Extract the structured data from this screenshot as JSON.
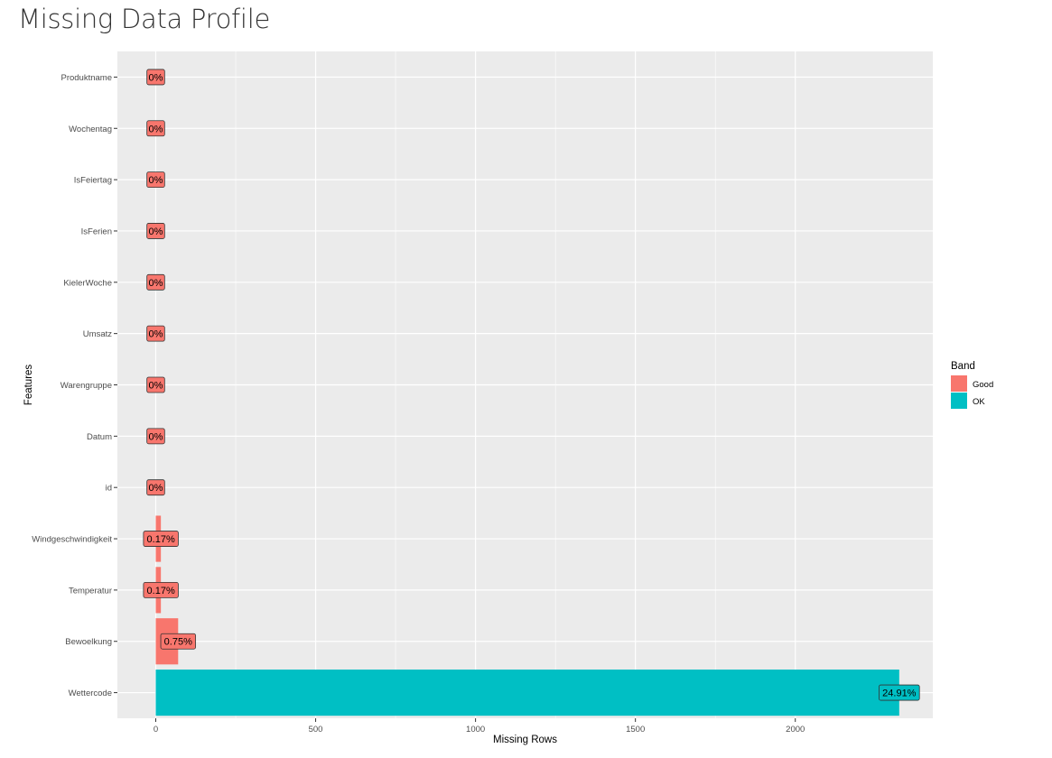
{
  "page": {
    "title": "Missing Data Profile"
  },
  "colors": {
    "Good": "#F8766D",
    "OK": "#00BFC4",
    "panel": "#EBEBEB",
    "grid": "#FFFFFF"
  },
  "chart_data": {
    "type": "bar",
    "orientation": "horizontal",
    "xlabel": "Missing Rows",
    "ylabel": "Features",
    "xlim": [
      -120,
      2430
    ],
    "xticks": [
      0,
      500,
      1000,
      1500,
      2000
    ],
    "grid": true,
    "legend": {
      "title": "Band",
      "position": "right",
      "entries": [
        {
          "name": "Good",
          "color": "#F8766D"
        },
        {
          "name": "OK",
          "color": "#00BFC4"
        }
      ]
    },
    "categories": [
      "Produktname",
      "Wochentag",
      "IsFeiertag",
      "IsFerien",
      "KielerWoche",
      "Umsatz",
      "Warengruppe",
      "Datum",
      "id",
      "Windgeschwindigkeit",
      "Temperatur",
      "Bewoelkung",
      "Wettercode"
    ],
    "values": [
      0,
      0,
      0,
      0,
      0,
      0,
      0,
      0,
      0,
      16,
      16,
      70,
      2325
    ],
    "bands": [
      "Good",
      "Good",
      "Good",
      "Good",
      "Good",
      "Good",
      "Good",
      "Good",
      "Good",
      "Good",
      "Good",
      "Good",
      "OK"
    ],
    "labels": [
      "0%",
      "0%",
      "0%",
      "0%",
      "0%",
      "0%",
      "0%",
      "0%",
      "0%",
      "0.17%",
      "0.17%",
      "0.75%",
      "24.91%"
    ]
  }
}
